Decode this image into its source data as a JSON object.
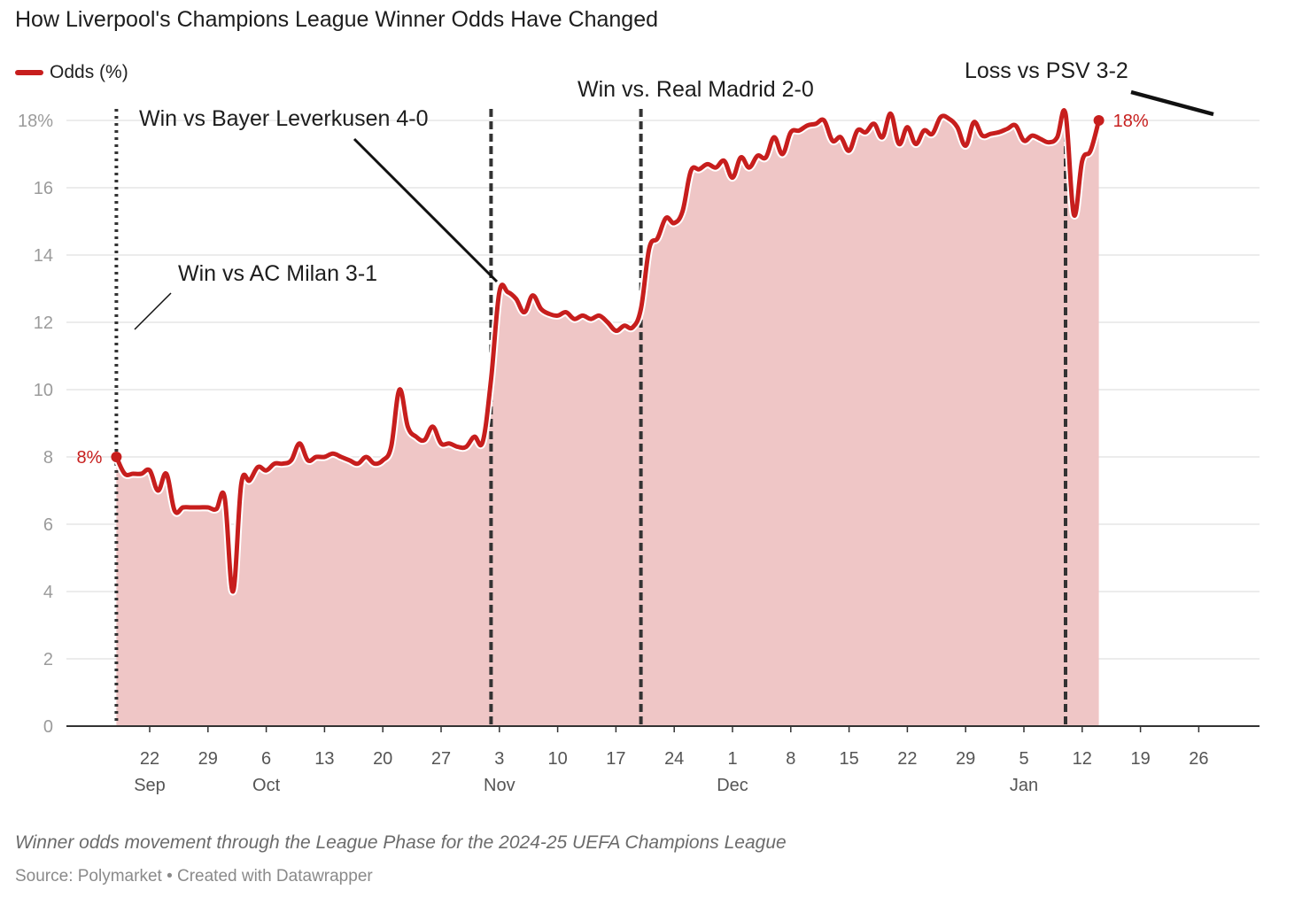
{
  "title": "How Liverpool's Champions League Winner Odds Have Changed",
  "legend": {
    "label": "Odds (%)"
  },
  "description": "Winner odds movement through the League Phase for the 2024-25 UEFA Champions League",
  "source": "Source: Polymarket • Created with Datawrapper",
  "colors": {
    "line": "#c71e1d",
    "area": "#efc6c6",
    "grid": "#e6e6e6",
    "marker_line": "#333333"
  },
  "chart_data": {
    "type": "area",
    "title": "How Liverpool's Champions League Winner Odds Have Changed",
    "ylabel": "",
    "xlabel": "",
    "ylim": [
      0,
      18
    ],
    "grid": true,
    "legend_position": "top-left",
    "y_ticks": [
      {
        "value": 0,
        "label": "0"
      },
      {
        "value": 2,
        "label": "2"
      },
      {
        "value": 4,
        "label": "4"
      },
      {
        "value": 6,
        "label": "6"
      },
      {
        "value": 8,
        "label": "8"
      },
      {
        "value": 10,
        "label": "10"
      },
      {
        "value": 12,
        "label": "12"
      },
      {
        "value": 14,
        "label": "14"
      },
      {
        "value": 16,
        "label": "16"
      },
      {
        "value": 18,
        "label": "18%"
      }
    ],
    "x_ticks": [
      {
        "date": "2024-09-22",
        "label": "22",
        "month": "Sep"
      },
      {
        "date": "2024-09-29",
        "label": "29",
        "month": ""
      },
      {
        "date": "2024-10-06",
        "label": "6",
        "month": "Oct"
      },
      {
        "date": "2024-10-13",
        "label": "13",
        "month": ""
      },
      {
        "date": "2024-10-20",
        "label": "20",
        "month": ""
      },
      {
        "date": "2024-10-27",
        "label": "27",
        "month": ""
      },
      {
        "date": "2024-11-03",
        "label": "3",
        "month": "Nov"
      },
      {
        "date": "2024-11-10",
        "label": "10",
        "month": ""
      },
      {
        "date": "2024-11-17",
        "label": "17",
        "month": ""
      },
      {
        "date": "2024-11-24",
        "label": "24",
        "month": ""
      },
      {
        "date": "2024-12-01",
        "label": "1",
        "month": "Dec"
      },
      {
        "date": "2024-12-08",
        "label": "8",
        "month": ""
      },
      {
        "date": "2024-12-15",
        "label": "15",
        "month": ""
      },
      {
        "date": "2024-12-22",
        "label": "22",
        "month": ""
      },
      {
        "date": "2024-12-29",
        "label": "29",
        "month": ""
      },
      {
        "date": "2025-01-05",
        "label": "5",
        "month": "Jan"
      },
      {
        "date": "2025-01-12",
        "label": "12",
        "month": ""
      },
      {
        "date": "2025-01-19",
        "label": "19",
        "month": ""
      },
      {
        "date": "2025-01-26",
        "label": "26",
        "month": ""
      }
    ],
    "series": [
      {
        "name": "Odds (%)",
        "points": [
          [
            "2024-09-18",
            8.0
          ],
          [
            "2024-09-19",
            7.5
          ],
          [
            "2024-09-20",
            7.5
          ],
          [
            "2024-09-21",
            7.5
          ],
          [
            "2024-09-22",
            7.6
          ],
          [
            "2024-09-23",
            7.0
          ],
          [
            "2024-09-24",
            7.5
          ],
          [
            "2024-09-25",
            6.4
          ],
          [
            "2024-09-26",
            6.5
          ],
          [
            "2024-09-27",
            6.5
          ],
          [
            "2024-09-28",
            6.5
          ],
          [
            "2024-09-29",
            6.5
          ],
          [
            "2024-09-30",
            6.45
          ],
          [
            "2024-10-01",
            6.8
          ],
          [
            "2024-10-02",
            4.0
          ],
          [
            "2024-10-03",
            7.2
          ],
          [
            "2024-10-04",
            7.3
          ],
          [
            "2024-10-05",
            7.7
          ],
          [
            "2024-10-06",
            7.6
          ],
          [
            "2024-10-07",
            7.8
          ],
          [
            "2024-10-08",
            7.8
          ],
          [
            "2024-10-09",
            7.9
          ],
          [
            "2024-10-10",
            8.4
          ],
          [
            "2024-10-11",
            7.9
          ],
          [
            "2024-10-12",
            8.0
          ],
          [
            "2024-10-13",
            8.0
          ],
          [
            "2024-10-14",
            8.1
          ],
          [
            "2024-10-15",
            8.0
          ],
          [
            "2024-10-16",
            7.9
          ],
          [
            "2024-10-17",
            7.8
          ],
          [
            "2024-10-18",
            8.0
          ],
          [
            "2024-10-19",
            7.8
          ],
          [
            "2024-10-20",
            7.9
          ],
          [
            "2024-10-21",
            8.3
          ],
          [
            "2024-10-22",
            10.0
          ],
          [
            "2024-10-23",
            8.9
          ],
          [
            "2024-10-24",
            8.6
          ],
          [
            "2024-10-25",
            8.5
          ],
          [
            "2024-10-26",
            8.9
          ],
          [
            "2024-10-27",
            8.4
          ],
          [
            "2024-10-28",
            8.4
          ],
          [
            "2024-10-29",
            8.3
          ],
          [
            "2024-10-30",
            8.3
          ],
          [
            "2024-10-31",
            8.6
          ],
          [
            "2024-11-01",
            8.45
          ],
          [
            "2024-11-02",
            10.3
          ],
          [
            "2024-11-03",
            12.9
          ],
          [
            "2024-11-04",
            12.9
          ],
          [
            "2024-11-05",
            12.7
          ],
          [
            "2024-11-06",
            12.3
          ],
          [
            "2024-11-07",
            12.8
          ],
          [
            "2024-11-08",
            12.4
          ],
          [
            "2024-11-09",
            12.25
          ],
          [
            "2024-11-10",
            12.2
          ],
          [
            "2024-11-11",
            12.3
          ],
          [
            "2024-11-12",
            12.1
          ],
          [
            "2024-11-13",
            12.2
          ],
          [
            "2024-11-14",
            12.1
          ],
          [
            "2024-11-15",
            12.2
          ],
          [
            "2024-11-16",
            12.0
          ],
          [
            "2024-11-17",
            11.75
          ],
          [
            "2024-11-18",
            11.9
          ],
          [
            "2024-11-19",
            11.85
          ],
          [
            "2024-11-20",
            12.4
          ],
          [
            "2024-11-21",
            14.2
          ],
          [
            "2024-11-22",
            14.5
          ],
          [
            "2024-11-23",
            15.1
          ],
          [
            "2024-11-24",
            14.95
          ],
          [
            "2024-11-25",
            15.3
          ],
          [
            "2024-11-26",
            16.5
          ],
          [
            "2024-11-27",
            16.55
          ],
          [
            "2024-11-28",
            16.7
          ],
          [
            "2024-11-29",
            16.6
          ],
          [
            "2024-11-30",
            16.8
          ],
          [
            "2024-12-01",
            16.3
          ],
          [
            "2024-12-02",
            16.9
          ],
          [
            "2024-12-03",
            16.6
          ],
          [
            "2024-12-04",
            16.95
          ],
          [
            "2024-12-05",
            16.9
          ],
          [
            "2024-12-06",
            17.5
          ],
          [
            "2024-12-07",
            17.0
          ],
          [
            "2024-12-08",
            17.65
          ],
          [
            "2024-12-09",
            17.7
          ],
          [
            "2024-12-10",
            17.85
          ],
          [
            "2024-12-11",
            17.9
          ],
          [
            "2024-12-12",
            18.0
          ],
          [
            "2024-12-13",
            17.4
          ],
          [
            "2024-12-14",
            17.5
          ],
          [
            "2024-12-15",
            17.1
          ],
          [
            "2024-12-16",
            17.7
          ],
          [
            "2024-12-17",
            17.65
          ],
          [
            "2024-12-18",
            17.9
          ],
          [
            "2024-12-19",
            17.5
          ],
          [
            "2024-12-20",
            18.2
          ],
          [
            "2024-12-21",
            17.3
          ],
          [
            "2024-12-22",
            17.8
          ],
          [
            "2024-12-23",
            17.3
          ],
          [
            "2024-12-24",
            17.7
          ],
          [
            "2024-12-25",
            17.6
          ],
          [
            "2024-12-26",
            18.1
          ],
          [
            "2024-12-27",
            18.05
          ],
          [
            "2024-12-28",
            17.8
          ],
          [
            "2024-12-29",
            17.25
          ],
          [
            "2024-12-30",
            17.95
          ],
          [
            "2024-12-31",
            17.55
          ],
          [
            "2025-01-01",
            17.6
          ],
          [
            "2025-01-02",
            17.65
          ],
          [
            "2025-01-03",
            17.75
          ],
          [
            "2025-01-04",
            17.85
          ],
          [
            "2025-01-05",
            17.4
          ],
          [
            "2025-01-06",
            17.55
          ],
          [
            "2025-01-07",
            17.45
          ],
          [
            "2025-01-08",
            17.35
          ],
          [
            "2025-01-09",
            17.5
          ],
          [
            "2025-01-10",
            18.2
          ],
          [
            "2025-01-11",
            15.2
          ],
          [
            "2025-01-12",
            16.8
          ],
          [
            "2025-01-13",
            17.1
          ],
          [
            "2025-01-14",
            18.0
          ]
        ]
      }
    ],
    "annotations": [
      {
        "date": "2024-09-18",
        "text": "Win vs AC Milan 3-1",
        "line_style": "dotted"
      },
      {
        "date": "2024-11-02",
        "text": "Win vs Bayer Leverkusen 4-0",
        "line_style": "dashed"
      },
      {
        "date": "2024-11-20",
        "text": "Win vs. Real Madrid 2-0",
        "line_style": "dashed"
      },
      {
        "date": "2025-01-10",
        "text": "Loss vs PSV 3-2",
        "line_style": "dashed"
      }
    ],
    "start_label": "8%",
    "end_label": "18%"
  }
}
